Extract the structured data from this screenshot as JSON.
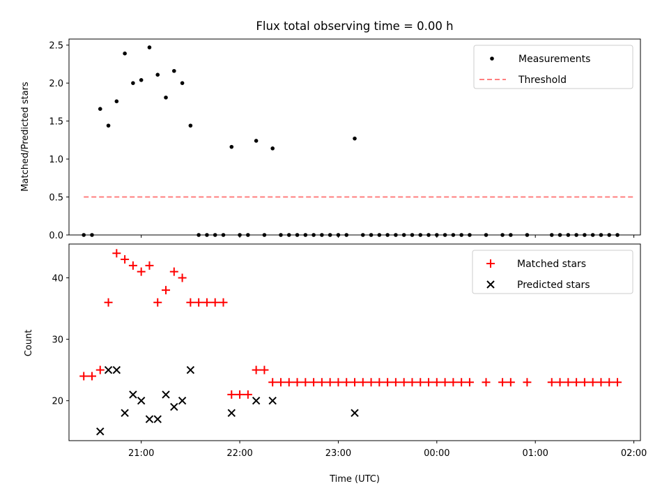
{
  "title": "Flux total observing time = 0.00 h",
  "colors": {
    "measurement": "#000000",
    "threshold": "#ff0000",
    "matched": "#ff0000",
    "predicted": "#000000"
  },
  "chart_data": [
    {
      "type": "scatter",
      "title": "Flux total observing time = 0.00 h",
      "xlabel": "",
      "ylabel": "Matched/Predicted stars",
      "ylim": [
        0,
        2.58
      ],
      "yticks": [
        "0.0",
        "0.5",
        "1.0",
        "1.5",
        "2.0",
        "2.5"
      ],
      "yticks_values": [
        0,
        0.5,
        1.0,
        1.5,
        2.0,
        2.5
      ],
      "xlim": [
        "20:16",
        "02:04"
      ],
      "legend": "top-right",
      "legend_entries": [
        "Measurements",
        "Threshold"
      ],
      "series": [
        {
          "name": "Measurements",
          "type": "scatter",
          "x": [
            "20:25",
            "20:30",
            "20:35",
            "20:40",
            "20:45",
            "20:50",
            "20:55",
            "21:00",
            "21:05",
            "21:10",
            "21:15",
            "21:20",
            "21:25",
            "21:30",
            "21:35",
            "21:40",
            "21:45",
            "21:50",
            "21:55",
            "22:00",
            "22:05",
            "22:10",
            "22:15",
            "22:20",
            "22:25",
            "22:30",
            "22:35",
            "22:40",
            "22:45",
            "22:50",
            "22:55",
            "23:00",
            "23:05",
            "23:10",
            "23:15",
            "23:20",
            "23:25",
            "23:30",
            "23:35",
            "23:40",
            "23:45",
            "23:50",
            "23:55",
            "00:00",
            "00:05",
            "00:10",
            "00:15",
            "00:20",
            "00:30",
            "00:40",
            "00:45",
            "00:55",
            "01:10",
            "01:15",
            "01:20",
            "01:25",
            "01:30",
            "01:35",
            "01:40",
            "01:45",
            "01:50"
          ],
          "y": [
            0,
            0,
            1.66,
            1.44,
            1.76,
            2.39,
            2.0,
            2.04,
            2.47,
            2.11,
            1.81,
            2.16,
            2.0,
            1.44,
            0,
            0,
            0,
            0,
            1.16,
            0,
            0,
            1.24,
            0,
            1.14,
            0,
            0,
            0,
            0,
            0,
            0,
            0,
            0,
            0,
            1.27,
            0,
            0,
            0,
            0,
            0,
            0,
            0,
            0,
            0,
            0,
            0,
            0,
            0,
            0,
            0,
            0,
            0,
            0,
            0,
            0,
            0,
            0,
            0,
            0,
            0,
            0,
            0
          ]
        },
        {
          "name": "Threshold",
          "type": "line",
          "x": [
            "20:25",
            "02:00"
          ],
          "y": [
            0.5,
            0.5
          ]
        }
      ]
    },
    {
      "type": "scatter",
      "title": "",
      "xlabel": "Time (UTC)",
      "ylabel": "Count",
      "ylim": [
        13.5,
        45.5
      ],
      "yticks": [
        "20",
        "30",
        "40"
      ],
      "yticks_values": [
        20,
        30,
        40
      ],
      "xlim": [
        "20:16",
        "02:04"
      ],
      "xticks": [
        "21:00",
        "22:00",
        "23:00",
        "00:00",
        "01:00",
        "02:00"
      ],
      "legend": "top-right",
      "legend_entries": [
        "Matched stars",
        "Predicted stars"
      ],
      "series": [
        {
          "name": "Matched stars",
          "type": "scatter",
          "marker": "plus",
          "x": [
            "20:25",
            "20:30",
            "20:35",
            "20:40",
            "20:45",
            "20:50",
            "20:55",
            "21:00",
            "21:05",
            "21:10",
            "21:15",
            "21:20",
            "21:25",
            "21:30",
            "21:35",
            "21:40",
            "21:45",
            "21:50",
            "21:55",
            "22:00",
            "22:05",
            "22:10",
            "22:15",
            "22:20",
            "22:25",
            "22:30",
            "22:35",
            "22:40",
            "22:45",
            "22:50",
            "22:55",
            "23:00",
            "23:05",
            "23:10",
            "23:15",
            "23:20",
            "23:25",
            "23:30",
            "23:35",
            "23:40",
            "23:45",
            "23:50",
            "23:55",
            "00:00",
            "00:05",
            "00:10",
            "00:15",
            "00:20",
            "00:30",
            "00:40",
            "00:45",
            "00:55",
            "01:10",
            "01:15",
            "01:20",
            "01:25",
            "01:30",
            "01:35",
            "01:40",
            "01:45",
            "01:50"
          ],
          "y": [
            24,
            24,
            25,
            36,
            44,
            43,
            42,
            41,
            42,
            36,
            38,
            41,
            40,
            36,
            36,
            36,
            36,
            36,
            21,
            21,
            21,
            25,
            25,
            23,
            23,
            23,
            23,
            23,
            23,
            23,
            23,
            23,
            23,
            23,
            23,
            23,
            23,
            23,
            23,
            23,
            23,
            23,
            23,
            23,
            23,
            23,
            23,
            23,
            23,
            23,
            23,
            23,
            23,
            23,
            23,
            23,
            23,
            23,
            23,
            23,
            23
          ]
        },
        {
          "name": "Predicted stars",
          "type": "scatter",
          "marker": "x",
          "x": [
            "20:35",
            "20:40",
            "20:45",
            "20:50",
            "20:55",
            "21:00",
            "21:05",
            "21:10",
            "21:15",
            "21:20",
            "21:25",
            "21:30",
            "21:55",
            "22:10",
            "22:20",
            "23:10"
          ],
          "y": [
            15,
            25,
            25,
            18,
            21,
            20,
            17,
            17,
            21,
            19,
            20,
            25,
            18,
            20,
            20,
            18
          ]
        }
      ]
    }
  ]
}
